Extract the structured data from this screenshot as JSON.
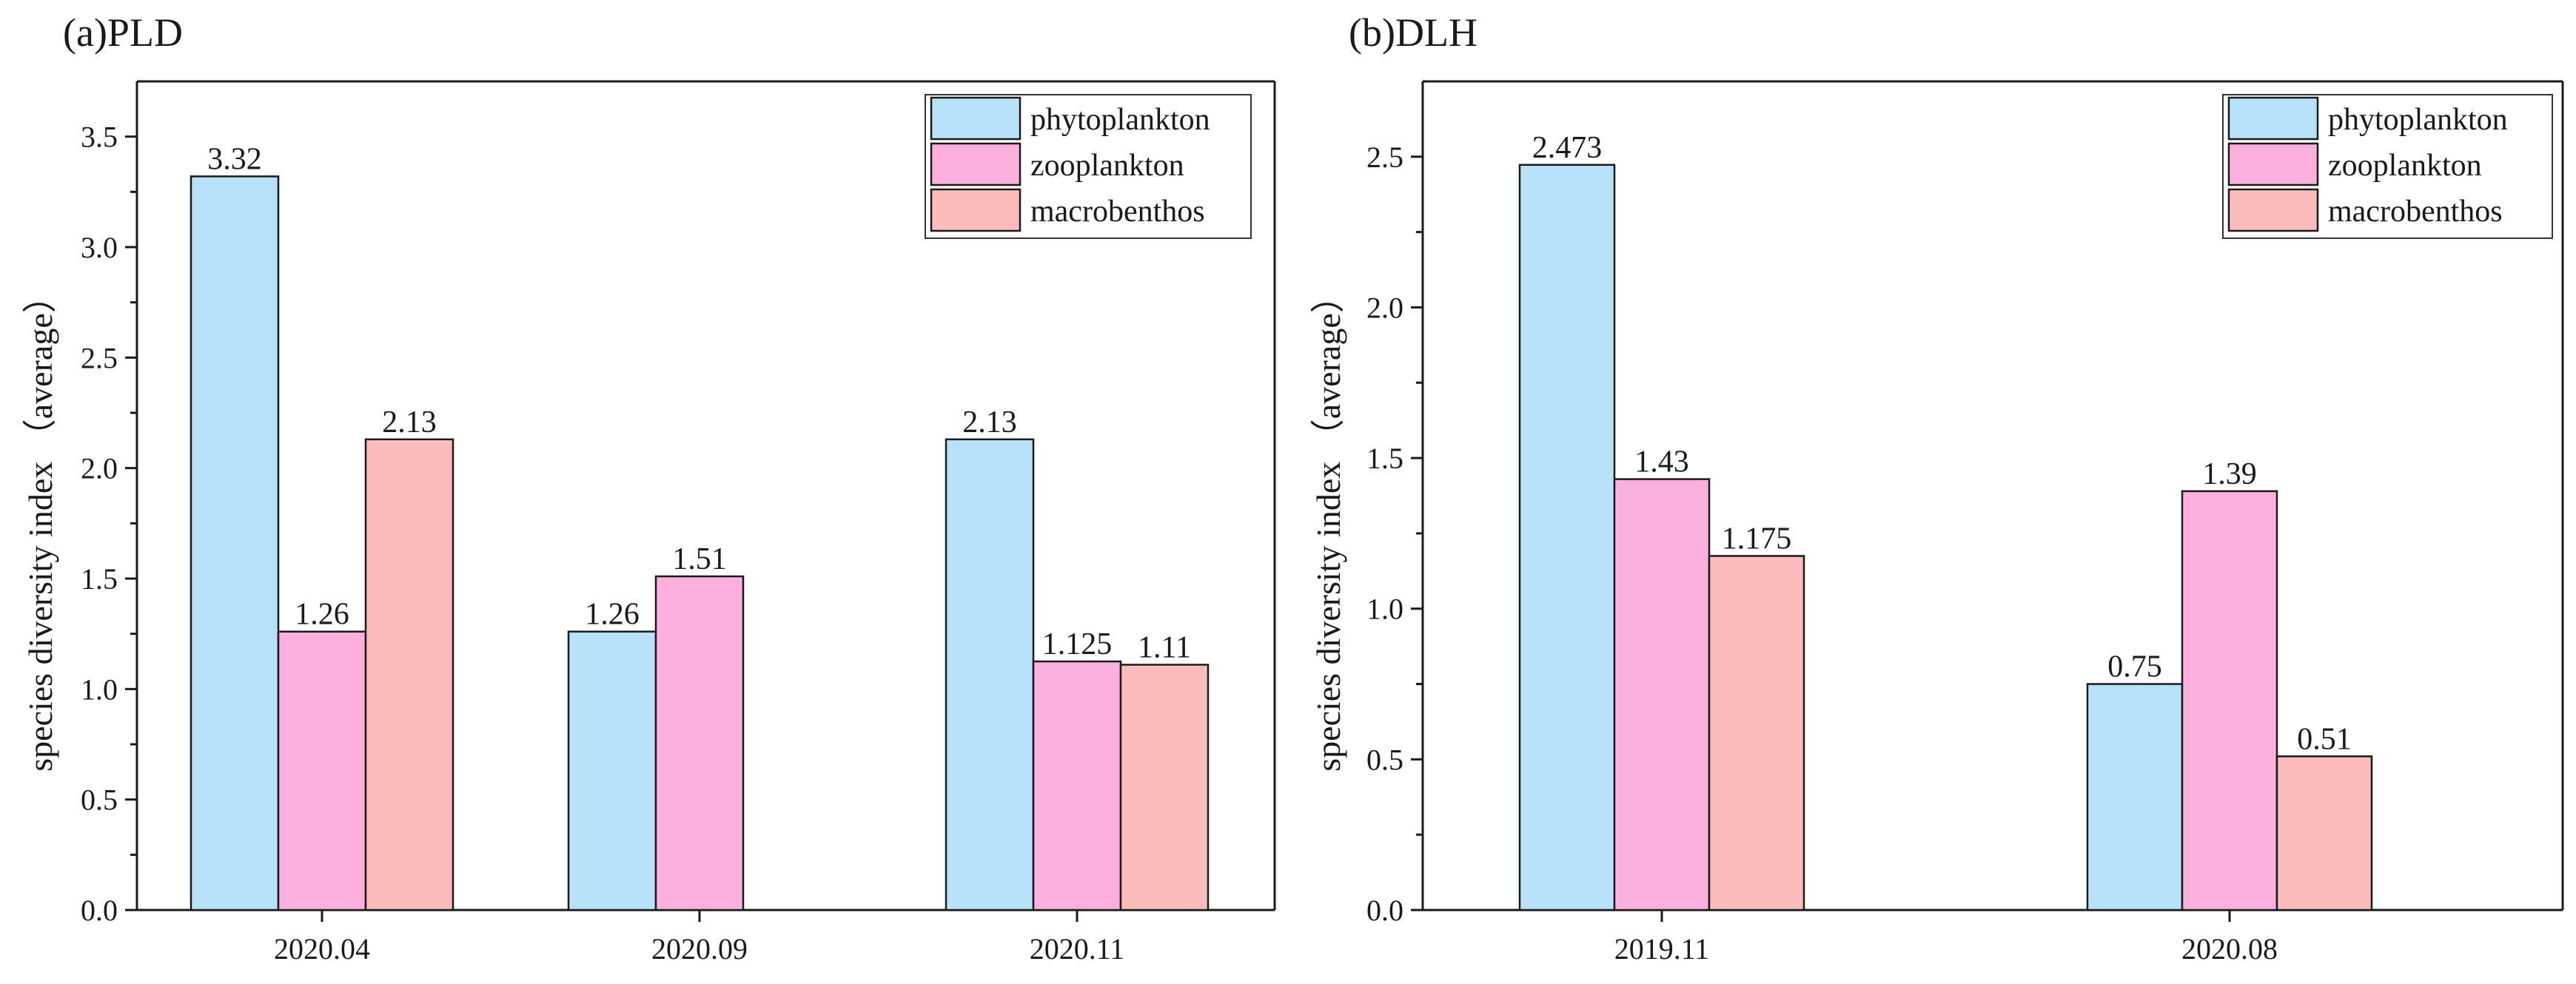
{
  "chart_data": [
    {
      "type": "bar",
      "panel_title": "(a)PLD",
      "ylabel": "species diversity index （average）",
      "xlabel": "",
      "ylim": [
        0,
        3.75
      ],
      "yticks": [
        "0.0",
        "0.5",
        "1.0",
        "1.5",
        "2.0",
        "2.5",
        "3.0",
        "3.5"
      ],
      "categories": [
        "2020.04",
        "2020.09",
        "2020.11"
      ],
      "legend_position": "top-right",
      "series": [
        {
          "name": "phytoplankton",
          "color": "#b8e2fa",
          "values": [
            3.32,
            1.26,
            2.13
          ],
          "labels": [
            "3.32",
            "1.26",
            "2.13"
          ]
        },
        {
          "name": "zooplankton",
          "color": "#fcb0de",
          "values": [
            1.26,
            1.51,
            1.125
          ],
          "labels": [
            "1.26",
            "1.51",
            "1.125"
          ]
        },
        {
          "name": "macrobenthos",
          "color": "#fbbcbc",
          "values": [
            2.13,
            null,
            1.11
          ],
          "labels": [
            "2.13",
            "",
            "1.11"
          ]
        }
      ]
    },
    {
      "type": "bar",
      "panel_title": "(b)DLH",
      "ylabel": "species diversity index （average）",
      "xlabel": "",
      "ylim": [
        0,
        2.75
      ],
      "yticks": [
        "0.0",
        "0.5",
        "1.0",
        "1.5",
        "2.0",
        "2.5"
      ],
      "categories": [
        "2019.11",
        "2020.08"
      ],
      "legend_position": "top-right",
      "series": [
        {
          "name": "phytoplankton",
          "color": "#b8e2fa",
          "values": [
            2.473,
            0.75
          ],
          "labels": [
            "2.473",
            "0.75"
          ]
        },
        {
          "name": "zooplankton",
          "color": "#fcb0de",
          "values": [
            1.43,
            1.39
          ],
          "labels": [
            "1.43",
            "1.39"
          ]
        },
        {
          "name": "macrobenthos",
          "color": "#fbbcbc",
          "values": [
            1.175,
            0.51
          ],
          "labels": [
            "1.175",
            "0.51"
          ]
        }
      ]
    }
  ]
}
